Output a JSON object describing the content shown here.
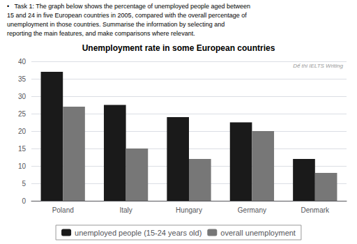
{
  "chart_data": {
    "type": "bar",
    "title": "Unemployment rate in some European countries",
    "annotations": [
      "•   Task 1: The graph below shows the percentage of unemployed people aged between",
      "15 and 24 in five European countries in 2005, compared with the overall percentage of",
      "unemployment in those countries. Summarise the information by selecting and",
      "reporting the main features, and make comparisons where relevant.",
      "Dế thi IELTS Writing"
    ],
    "categories": [
      "Poland",
      "Italy",
      "Hungary",
      "Germany",
      "Denmark"
    ],
    "series": [
      {
        "name": "unemployed people (15-24 years old)",
        "color": "#1a1a1a",
        "values": [
          37,
          27.5,
          24,
          22.5,
          12
        ]
      },
      {
        "name": "overall unemployment",
        "color": "#777777",
        "values": [
          27,
          15,
          12,
          20,
          8
        ]
      }
    ],
    "ylim": [
      0,
      40
    ],
    "yticks": [
      0,
      5,
      10,
      15,
      20,
      25,
      30,
      35,
      40
    ],
    "grid": true,
    "legend": "bottom"
  }
}
